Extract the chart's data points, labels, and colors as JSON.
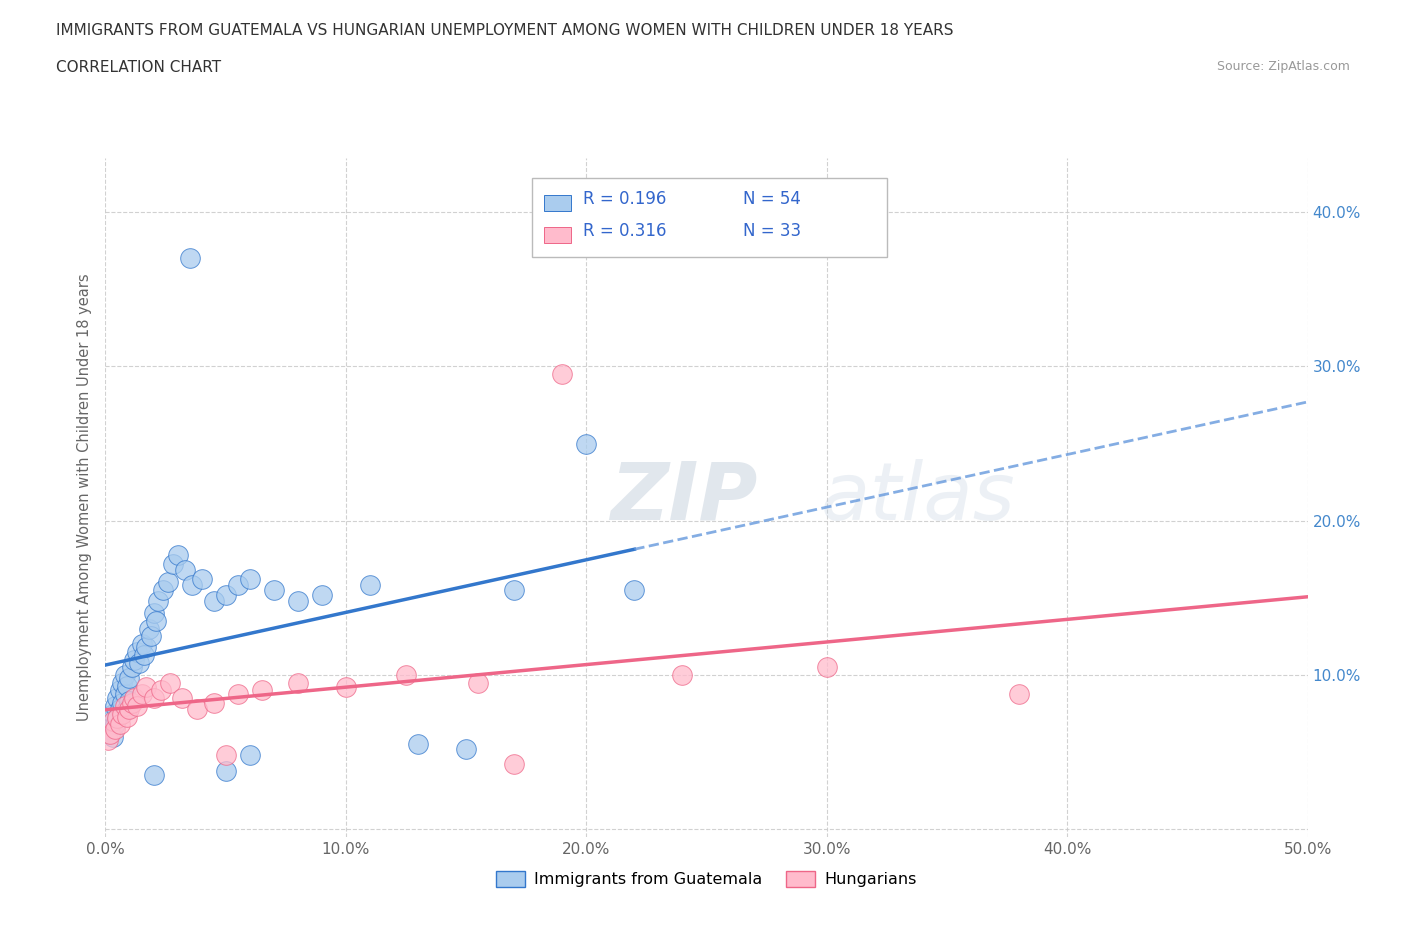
{
  "title_line1": "IMMIGRANTS FROM GUATEMALA VS HUNGARIAN UNEMPLOYMENT AMONG WOMEN WITH CHILDREN UNDER 18 YEARS",
  "title_line2": "CORRELATION CHART",
  "source_text": "Source: ZipAtlas.com",
  "ylabel": "Unemployment Among Women with Children Under 18 years",
  "xlim": [
    0.0,
    0.5
  ],
  "ylim": [
    -0.005,
    0.435
  ],
  "x_ticks": [
    0.0,
    0.1,
    0.2,
    0.3,
    0.4,
    0.5
  ],
  "x_tick_labels": [
    "0.0%",
    "10.0%",
    "20.0%",
    "30.0%",
    "40.0%",
    "50.0%"
  ],
  "y_ticks": [
    0.0,
    0.1,
    0.2,
    0.3,
    0.4
  ],
  "y_tick_labels_right": [
    "",
    "10.0%",
    "20.0%",
    "30.0%",
    "40.0%"
  ],
  "color_blue": "#AACCEE",
  "color_pink": "#FFBBCC",
  "line_blue": "#3377CC",
  "line_blue_dash": "#6699DD",
  "line_pink": "#EE6688",
  "r_blue": 0.196,
  "n_blue": 54,
  "r_pink": 0.316,
  "n_pink": 33,
  "legend_color": "#3366CC",
  "watermark_zip": "ZIP",
  "watermark_atlas": "atlas",
  "grid_color": "#CCCCCC",
  "bg_color": "#FFFFFF",
  "blue_scatter_x": [
    0.001,
    0.002,
    0.003,
    0.003,
    0.004,
    0.004,
    0.005,
    0.005,
    0.006,
    0.006,
    0.007,
    0.007,
    0.008,
    0.008,
    0.009,
    0.009,
    0.01,
    0.01,
    0.011,
    0.012,
    0.013,
    0.014,
    0.015,
    0.016,
    0.017,
    0.018,
    0.019,
    0.02,
    0.021,
    0.022,
    0.024,
    0.026,
    0.028,
    0.03,
    0.033,
    0.036,
    0.04,
    0.045,
    0.05,
    0.055,
    0.06,
    0.07,
    0.08,
    0.09,
    0.11,
    0.13,
    0.15,
    0.17,
    0.2,
    0.22,
    0.05,
    0.06,
    0.02,
    0.035
  ],
  "blue_scatter_y": [
    0.065,
    0.07,
    0.075,
    0.06,
    0.08,
    0.068,
    0.072,
    0.085,
    0.09,
    0.078,
    0.082,
    0.095,
    0.088,
    0.1,
    0.093,
    0.078,
    0.083,
    0.098,
    0.105,
    0.11,
    0.115,
    0.108,
    0.12,
    0.113,
    0.118,
    0.13,
    0.125,
    0.14,
    0.135,
    0.148,
    0.155,
    0.16,
    0.172,
    0.178,
    0.168,
    0.158,
    0.162,
    0.148,
    0.152,
    0.158,
    0.162,
    0.155,
    0.148,
    0.152,
    0.158,
    0.055,
    0.052,
    0.155,
    0.25,
    0.155,
    0.038,
    0.048,
    0.035,
    0.37
  ],
  "pink_scatter_x": [
    0.001,
    0.002,
    0.003,
    0.004,
    0.005,
    0.006,
    0.007,
    0.008,
    0.009,
    0.01,
    0.011,
    0.012,
    0.013,
    0.015,
    0.017,
    0.02,
    0.023,
    0.027,
    0.032,
    0.038,
    0.045,
    0.055,
    0.065,
    0.08,
    0.1,
    0.125,
    0.155,
    0.19,
    0.24,
    0.3,
    0.38,
    0.17,
    0.05
  ],
  "pink_scatter_y": [
    0.058,
    0.062,
    0.07,
    0.065,
    0.072,
    0.068,
    0.075,
    0.08,
    0.073,
    0.078,
    0.082,
    0.085,
    0.08,
    0.088,
    0.092,
    0.085,
    0.09,
    0.095,
    0.085,
    0.078,
    0.082,
    0.088,
    0.09,
    0.095,
    0.092,
    0.1,
    0.095,
    0.295,
    0.1,
    0.105,
    0.088,
    0.042,
    0.048
  ]
}
